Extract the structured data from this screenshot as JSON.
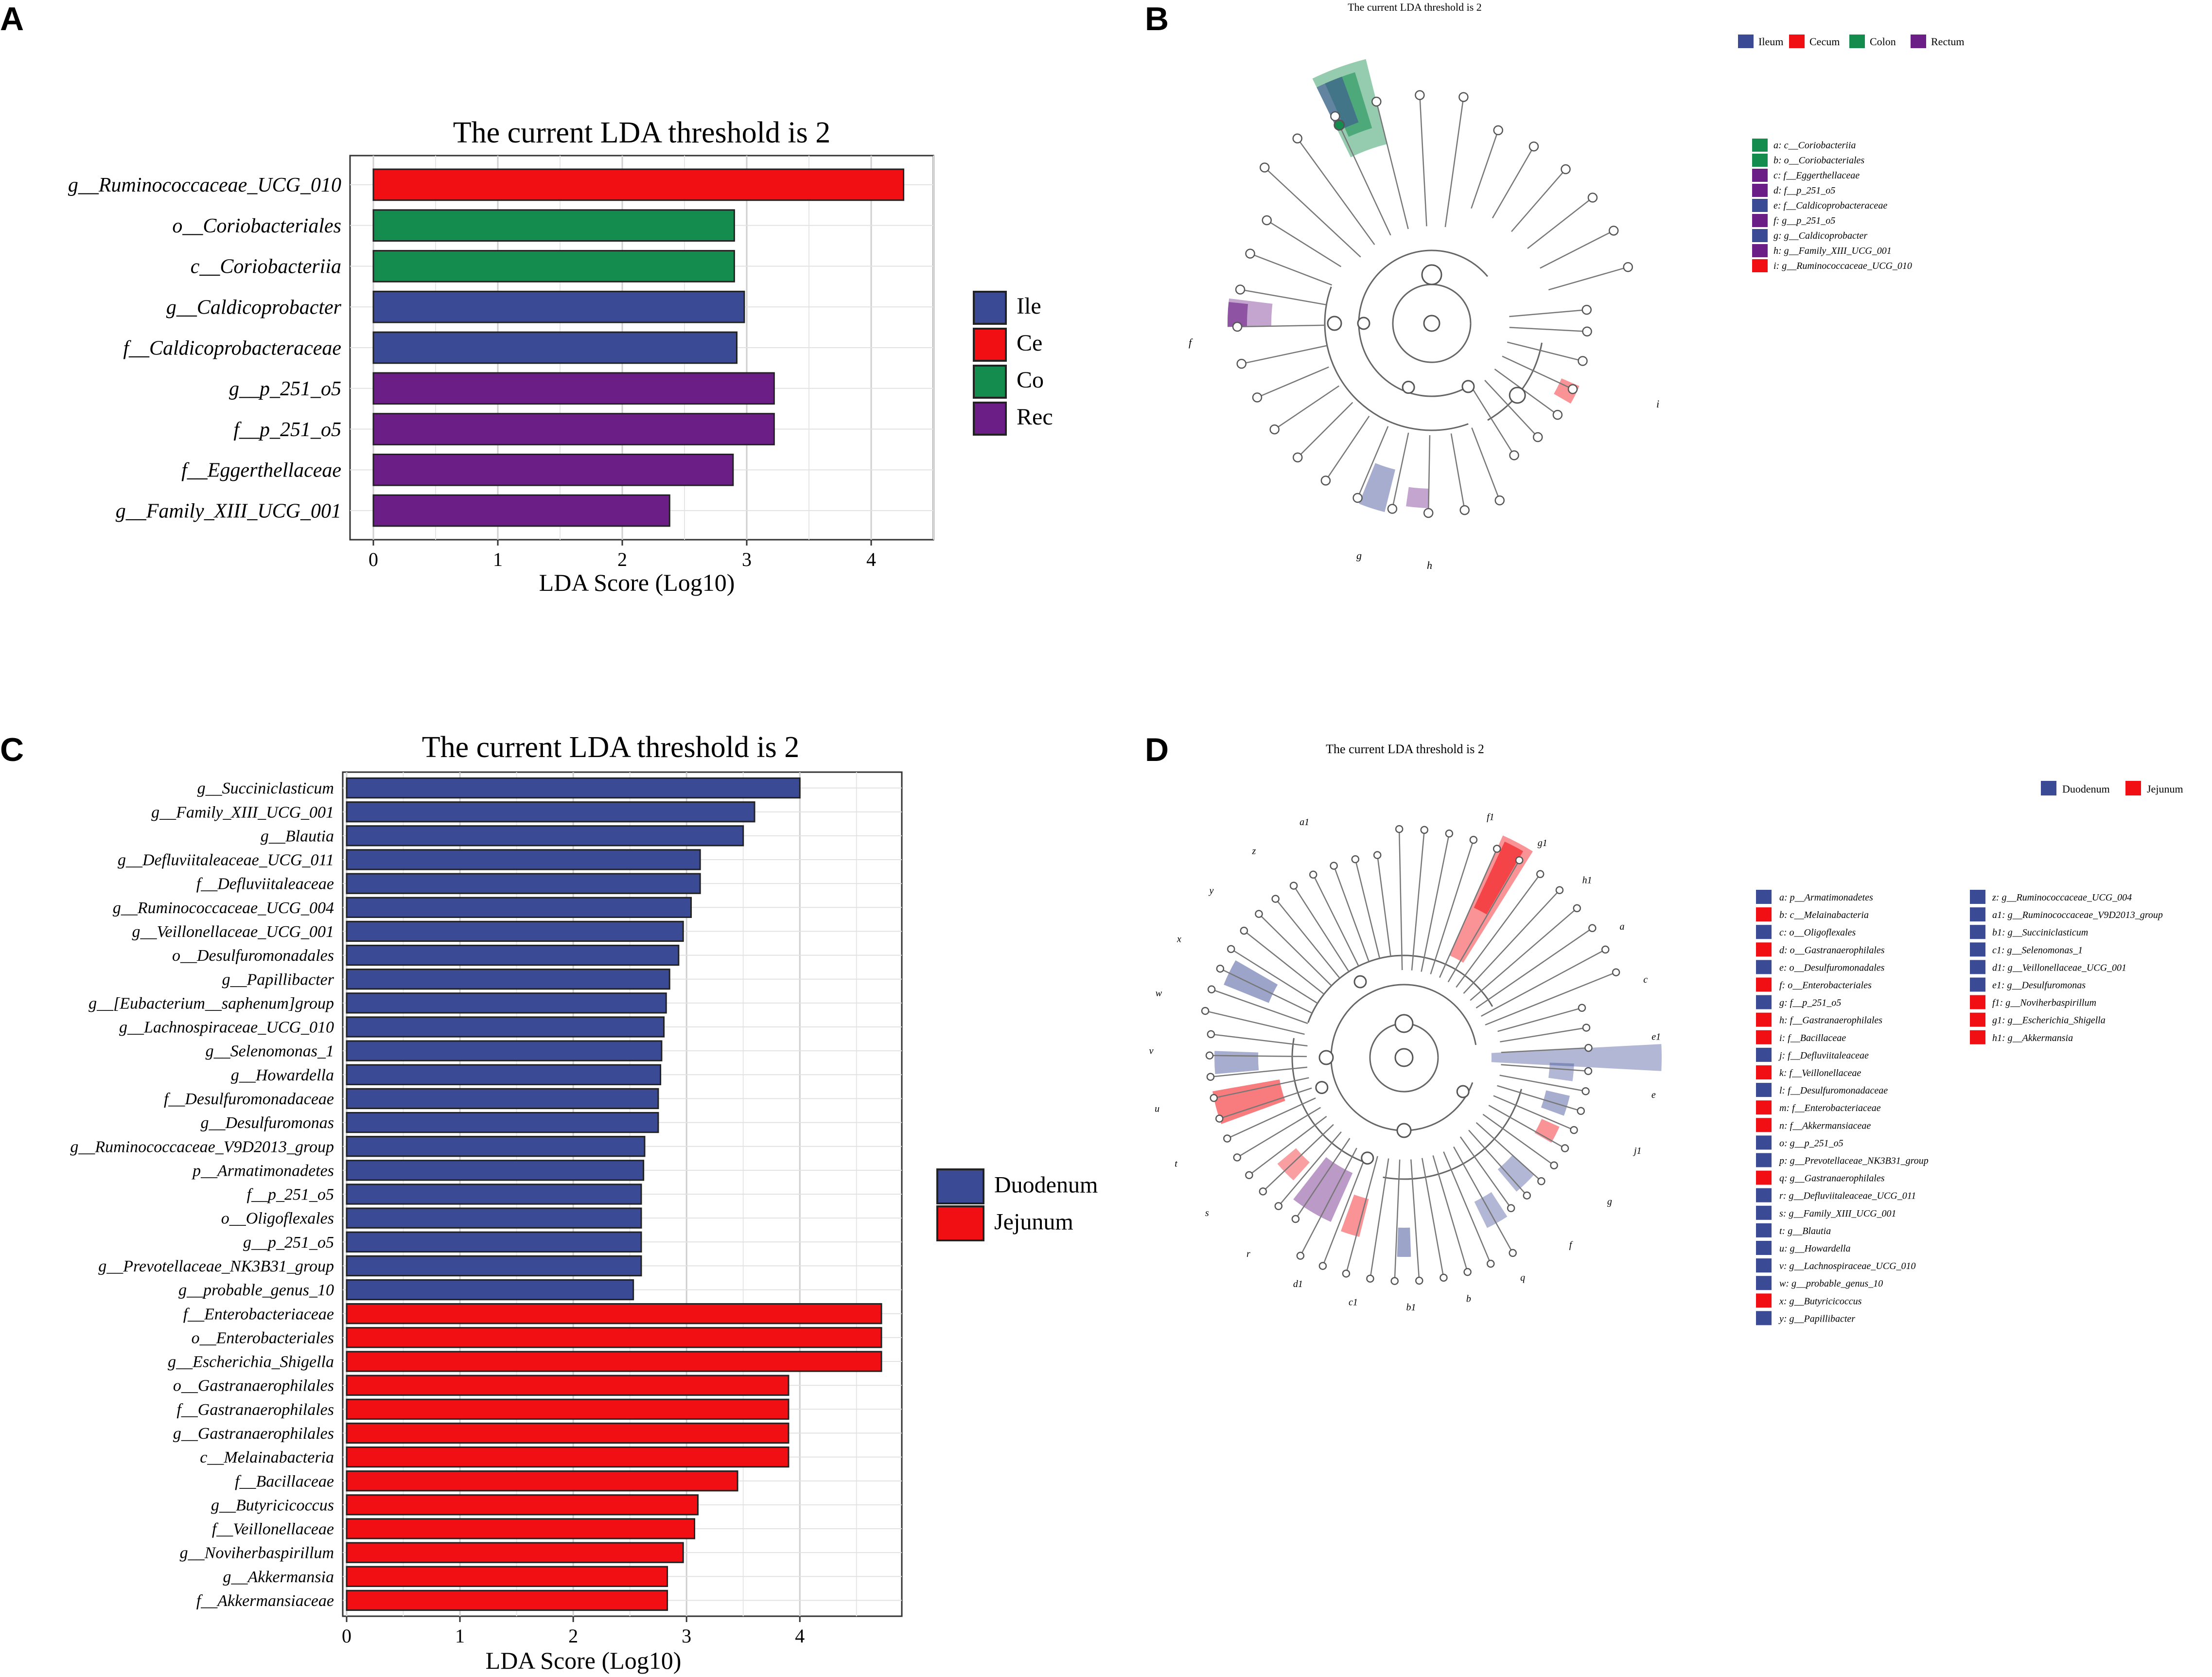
{
  "colors": {
    "ileum": "#3B4A94",
    "cecum": "#F20F14",
    "colon": "#138C4E",
    "rectum": "#6B1E86",
    "duodenum": "#3B4A94",
    "jejunum": "#F20F14"
  },
  "chart_data": [
    {
      "panel": "A",
      "type": "bar",
      "orientation": "horizontal",
      "title": "The current LDA threshold is 2",
      "xlabel": "LDA Score (Log10)",
      "xlim": [
        0,
        4.5
      ],
      "xticks": [
        "0",
        "1",
        "2",
        "3",
        "4"
      ],
      "legend": [
        {
          "label": "Ile",
          "color_key": "ileum"
        },
        {
          "label": "Ce",
          "color_key": "cecum"
        },
        {
          "label": "Co",
          "color_key": "colon"
        },
        {
          "label": "Rec",
          "color_key": "rectum"
        }
      ],
      "bars": [
        {
          "label": "g__Ruminococcaceae_UCG_010",
          "value": 4.26,
          "color_key": "cecum"
        },
        {
          "label": "o__Coriobacteriales",
          "value": 2.9,
          "color_key": "colon"
        },
        {
          "label": "c__Coriobacteriia",
          "value": 2.9,
          "color_key": "colon"
        },
        {
          "label": "g__Caldicoprobacter",
          "value": 2.98,
          "color_key": "ileum"
        },
        {
          "label": "f__Caldicoprobacteraceae",
          "value": 2.92,
          "color_key": "ileum"
        },
        {
          "label": "g__p_251_o5",
          "value": 3.22,
          "color_key": "rectum"
        },
        {
          "label": "f__p_251_o5",
          "value": 3.22,
          "color_key": "rectum"
        },
        {
          "label": "f__Eggerthellaceae",
          "value": 2.89,
          "color_key": "rectum"
        },
        {
          "label": "g__Family_XIII_UCG_001",
          "value": 2.38,
          "color_key": "rectum"
        }
      ]
    },
    {
      "panel": "C",
      "type": "bar",
      "orientation": "horizontal",
      "title": "The current LDA threshold is 2",
      "xlabel": "LDA Score (Log10)",
      "xlim": [
        0,
        4.9
      ],
      "xticks": [
        "0",
        "1",
        "2",
        "3",
        "4"
      ],
      "legend": [
        {
          "label": "Duodenum",
          "color_key": "duodenum"
        },
        {
          "label": "Jejunum",
          "color_key": "jejunum"
        }
      ],
      "bars": [
        {
          "label": "g__Succiniclasticum",
          "value": 4.0,
          "color_key": "duodenum"
        },
        {
          "label": "g__Family_XIII_UCG_001",
          "value": 3.6,
          "color_key": "duodenum"
        },
        {
          "label": "g__Blautia",
          "value": 3.5,
          "color_key": "duodenum"
        },
        {
          "label": "g__Defluviitaleaceae_UCG_011",
          "value": 3.12,
          "color_key": "duodenum"
        },
        {
          "label": "f__Defluviitaleaceae",
          "value": 3.12,
          "color_key": "duodenum"
        },
        {
          "label": "g__Ruminococcaceae_UCG_004",
          "value": 3.04,
          "color_key": "duodenum"
        },
        {
          "label": "g__Veillonellaceae_UCG_001",
          "value": 2.97,
          "color_key": "duodenum"
        },
        {
          "label": "o__Desulfuromonadales",
          "value": 2.93,
          "color_key": "duodenum"
        },
        {
          "label": "g__Papillibacter",
          "value": 2.85,
          "color_key": "duodenum"
        },
        {
          "label": "g__[Eubacterium__saphenum]group",
          "value": 2.82,
          "color_key": "duodenum"
        },
        {
          "label": "g__Lachnospiraceae_UCG_010",
          "value": 2.8,
          "color_key": "duodenum"
        },
        {
          "label": "g__Selenomonas_1",
          "value": 2.78,
          "color_key": "duodenum"
        },
        {
          "label": "g__Howardella",
          "value": 2.77,
          "color_key": "duodenum"
        },
        {
          "label": "f__Desulfuromonadaceae",
          "value": 2.75,
          "color_key": "duodenum"
        },
        {
          "label": "g__Desulfuromonas",
          "value": 2.75,
          "color_key": "duodenum"
        },
        {
          "label": "g__Ruminococcaceae_V9D2013_group",
          "value": 2.63,
          "color_key": "duodenum"
        },
        {
          "label": "p__Armatimonadetes",
          "value": 2.62,
          "color_key": "duodenum"
        },
        {
          "label": "f__p_251_o5",
          "value": 2.6,
          "color_key": "duodenum"
        },
        {
          "label": "o__Oligoflexales",
          "value": 2.6,
          "color_key": "duodenum"
        },
        {
          "label": "g__p_251_o5",
          "value": 2.6,
          "color_key": "duodenum"
        },
        {
          "label": "g__Prevotellaceae_NK3B31_group",
          "value": 2.6,
          "color_key": "duodenum"
        },
        {
          "label": "g__probable_genus_10",
          "value": 2.53,
          "color_key": "duodenum"
        },
        {
          "label": "f__Enterobacteriaceae",
          "value": 4.72,
          "color_key": "jejunum"
        },
        {
          "label": "o__Enterobacteriales",
          "value": 4.72,
          "color_key": "jejunum"
        },
        {
          "label": "g__Escherichia_Shigella",
          "value": 4.72,
          "color_key": "jejunum"
        },
        {
          "label": "o__Gastranaerophilales",
          "value": 3.9,
          "color_key": "jejunum"
        },
        {
          "label": "f__Gastranaerophilales",
          "value": 3.9,
          "color_key": "jejunum"
        },
        {
          "label": "g__Gastranaerophilales",
          "value": 3.9,
          "color_key": "jejunum"
        },
        {
          "label": "c__Melainabacteria",
          "value": 3.9,
          "color_key": "jejunum"
        },
        {
          "label": "f__Bacillaceae",
          "value": 3.45,
          "color_key": "jejunum"
        },
        {
          "label": "g__Butyricicoccus",
          "value": 3.1,
          "color_key": "jejunum"
        },
        {
          "label": "f__Veillonellaceae",
          "value": 3.07,
          "color_key": "jejunum"
        },
        {
          "label": "g__Noviherbaspirillum",
          "value": 2.97,
          "color_key": "jejunum"
        },
        {
          "label": "g__Akkermansia",
          "value": 2.83,
          "color_key": "jejunum"
        },
        {
          "label": "f__Akkermansiaceae",
          "value": 2.83,
          "color_key": "jejunum"
        }
      ]
    },
    {
      "panel": "B",
      "type": "cladogram",
      "title": "The current LDA threshold is 2",
      "group_legend": [
        {
          "label": "Ileum",
          "color_key": "ileum"
        },
        {
          "label": "Cecum",
          "color_key": "cecum"
        },
        {
          "label": "Colon",
          "color_key": "colon"
        },
        {
          "label": "Rectum",
          "color_key": "rectum"
        }
      ],
      "taxa_legend": [
        {
          "text": "a: c__Coriobacteriia",
          "color_key": "colon"
        },
        {
          "text": "b: o__Coriobacteriales",
          "color_key": "colon"
        },
        {
          "text": "c: f__Eggerthellaceae",
          "color_key": "rectum"
        },
        {
          "text": "d: f__p_251_o5",
          "color_key": "rectum"
        },
        {
          "text": "e: f__Caldicoprobacteraceae",
          "color_key": "ileum"
        },
        {
          "text": "f: g__p_251_o5",
          "color_key": "rectum"
        },
        {
          "text": "g: g__Caldicoprobacter",
          "color_key": "ileum"
        },
        {
          "text": "h: g__Family_XIII_UCG_001",
          "color_key": "rectum"
        },
        {
          "text": "i: g__Ruminococcaceae_UCG_010",
          "color_key": "cecum"
        }
      ],
      "outer_labels": [
        "f",
        "i",
        "g",
        "h"
      ]
    },
    {
      "panel": "D",
      "type": "cladogram",
      "title": "The current LDA threshold is 2",
      "group_legend": [
        {
          "label": "Duodenum",
          "color_key": "duodenum"
        },
        {
          "label": "Jejunum",
          "color_key": "jejunum"
        }
      ],
      "taxa_legend_col1": [
        {
          "text": "a: p__Armatimonadetes",
          "color_key": "duodenum"
        },
        {
          "text": "b: c__Melainabacteria",
          "color_key": "jejunum"
        },
        {
          "text": "c: o__Oligoflexales",
          "color_key": "duodenum"
        },
        {
          "text": "d: o__Gastranaerophilales",
          "color_key": "jejunum"
        },
        {
          "text": "e: o__Desulfuromonadales",
          "color_key": "duodenum"
        },
        {
          "text": "f: o__Enterobacteriales",
          "color_key": "jejunum"
        },
        {
          "text": "g: f__p_251_o5",
          "color_key": "duodenum"
        },
        {
          "text": "h: f__Gastranaerophilales",
          "color_key": "jejunum"
        },
        {
          "text": "i: f__Bacillaceae",
          "color_key": "jejunum"
        },
        {
          "text": "j: f__Defluviitaleaceae",
          "color_key": "duodenum"
        },
        {
          "text": "k: f__Veillonellaceae",
          "color_key": "jejunum"
        },
        {
          "text": "l: f__Desulfuromonadaceae",
          "color_key": "duodenum"
        },
        {
          "text": "m: f__Enterobacteriaceae",
          "color_key": "jejunum"
        },
        {
          "text": "n: f__Akkermansiaceae",
          "color_key": "jejunum"
        },
        {
          "text": "o: g__p_251_o5",
          "color_key": "duodenum"
        },
        {
          "text": "p: g__Prevotellaceae_NK3B31_group",
          "color_key": "duodenum"
        },
        {
          "text": "q: g__Gastranaerophilales",
          "color_key": "jejunum"
        },
        {
          "text": "r: g__Defluviitaleaceae_UCG_011",
          "color_key": "duodenum"
        },
        {
          "text": "s: g__Family_XIII_UCG_001",
          "color_key": "duodenum"
        },
        {
          "text": "t: g__Blautia",
          "color_key": "duodenum"
        },
        {
          "text": "u: g__Howardella",
          "color_key": "duodenum"
        },
        {
          "text": "v: g__Lachnospiraceae_UCG_010",
          "color_key": "duodenum"
        },
        {
          "text": "w: g__probable_genus_10",
          "color_key": "duodenum"
        },
        {
          "text": "x: g__Butyricicoccus",
          "color_key": "jejunum"
        },
        {
          "text": "y: g__Papillibacter",
          "color_key": "duodenum"
        }
      ],
      "taxa_legend_col2": [
        {
          "text": "z: g__Ruminococcaceae_UCG_004",
          "color_key": "duodenum"
        },
        {
          "text": "a1: g__Ruminococcaceae_V9D2013_group",
          "color_key": "duodenum"
        },
        {
          "text": "b1: g__Succiniclasticum",
          "color_key": "duodenum"
        },
        {
          "text": "c1: g__Selenomonas_1",
          "color_key": "duodenum"
        },
        {
          "text": "d1: g__Veillonellaceae_UCG_001",
          "color_key": "duodenum"
        },
        {
          "text": "e1: g__Desulfuromonas",
          "color_key": "duodenum"
        },
        {
          "text": "f1: g__Noviherbaspirillum",
          "color_key": "jejunum"
        },
        {
          "text": "g1: g__Escherichia_Shigella",
          "color_key": "jejunum"
        },
        {
          "text": "h1: g__Akkermansia",
          "color_key": "jejunum"
        }
      ],
      "outer_labels": [
        "f1",
        "g1",
        "h1",
        "a",
        "c",
        "e1",
        "e",
        "j1",
        "g",
        "f",
        "q",
        "b",
        "b1",
        "c1",
        "d1",
        "r",
        "s",
        "t",
        "u",
        "v",
        "w",
        "x",
        "y",
        "z",
        "a1"
      ]
    }
  ],
  "panels": [
    {
      "letter": "A"
    },
    {
      "letter": "B"
    },
    {
      "letter": "C"
    },
    {
      "letter": "D"
    }
  ]
}
